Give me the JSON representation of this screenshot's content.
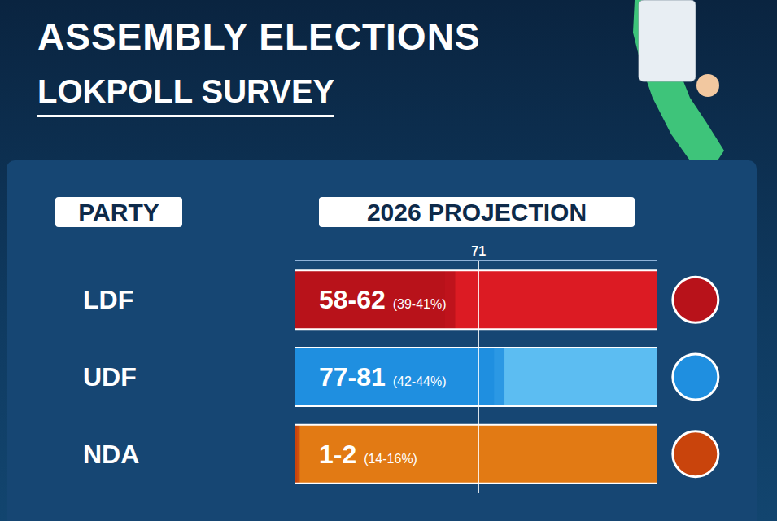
{
  "header": {
    "title": "ASSEMBLY ELECTIONS",
    "subtitle": "LOKPOLL SURVEY",
    "column_headers": [
      "PARTY",
      "2026 PROJECTION"
    ]
  },
  "chart_data": {
    "type": "bar",
    "orientation": "horizontal",
    "categories": [
      "LDF",
      "UDF",
      "NDA"
    ],
    "seats_low": [
      58,
      77,
      1
    ],
    "seats_high": [
      62,
      81,
      2
    ],
    "value_labels": [
      "58-62",
      "77-81",
      "1-2"
    ],
    "share_labels": [
      "(39-41%)",
      "(42-44%)",
      "(14-16%)"
    ],
    "colors": [
      "#b8121a",
      "#1f8fe0",
      "#c9440c"
    ],
    "xlim": [
      0,
      140
    ],
    "xticks": [
      71
    ],
    "grid": true,
    "data_labels": true
  }
}
